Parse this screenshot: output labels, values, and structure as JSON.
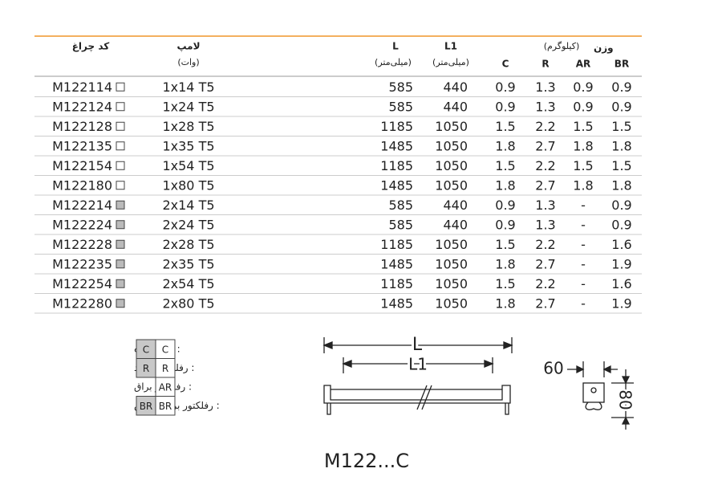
{
  "table": {
    "headers": {
      "code": "کد چراغ",
      "lamp": "لامپ",
      "lamp_unit": "(وات)",
      "L": "L",
      "L_unit": "(میلی‌متر)",
      "L1": "L1",
      "L1_unit": "(میلی‌متر)",
      "weight": "وزن",
      "weight_unit": "(کیلوگرم)",
      "C": "C",
      "R": "R",
      "AR": "AR",
      "BR": "BR"
    },
    "rows": [
      {
        "marker_color": "#ffffff",
        "cells": [
          "M122114",
          "1x14 T5",
          "585",
          "440",
          "0.9",
          "1.3",
          "0.9",
          "0.9"
        ]
      },
      {
        "marker_color": "#ffffff",
        "cells": [
          "M122124",
          "1x24 T5",
          "585",
          "440",
          "0.9",
          "1.3",
          "0.9",
          "0.9"
        ]
      },
      {
        "marker_color": "#ffffff",
        "cells": [
          "M122128",
          "1x28 T5",
          "1185",
          "1050",
          "1.5",
          "2.2",
          "1.5",
          "1.5"
        ]
      },
      {
        "marker_color": "#ffffff",
        "cells": [
          "M122135",
          "1x35 T5",
          "1485",
          "1050",
          "1.8",
          "2.7",
          "1.8",
          "1.8"
        ]
      },
      {
        "marker_color": "#ffffff",
        "cells": [
          "M122154",
          "1x54 T5",
          "1185",
          "1050",
          "1.5",
          "2.2",
          "1.5",
          "1.5"
        ]
      },
      {
        "marker_color": "#ffffff",
        "cells": [
          "M122180",
          "1x80 T5",
          "1485",
          "1050",
          "1.8",
          "2.7",
          "1.8",
          "1.8"
        ]
      },
      {
        "marker_color": "#bbbbbb",
        "cells": [
          "M122214",
          "2x14 T5",
          "585",
          "440",
          "0.9",
          "1.3",
          "-",
          "0.9"
        ]
      },
      {
        "marker_color": "#bbbbbb",
        "cells": [
          "M122224",
          "2x24 T5",
          "585",
          "440",
          "0.9",
          "1.3",
          "-",
          "0.9"
        ]
      },
      {
        "marker_color": "#bbbbbb",
        "cells": [
          "M122228",
          "2x28 T5",
          "1185",
          "1050",
          "1.5",
          "2.2",
          "-",
          "1.6"
        ]
      },
      {
        "marker_color": "#bbbbbb",
        "cells": [
          "M122235",
          "2x35 T5",
          "1485",
          "1050",
          "1.8",
          "2.7",
          "-",
          "1.9"
        ]
      },
      {
        "marker_color": "#bbbbbb",
        "cells": [
          "M122254",
          "2x54 T5",
          "1185",
          "1050",
          "1.5",
          "2.2",
          "-",
          "1.6"
        ]
      },
      {
        "marker_color": "#bbbbbb",
        "cells": [
          "M122280",
          "2x80 T5",
          "1485",
          "1050",
          "1.8",
          "2.7",
          "-",
          "1.9"
        ]
      }
    ]
  },
  "legend": [
    {
      "label": ": قاب ساده",
      "cells": [
        "C",
        "C"
      ]
    },
    {
      "label": ": رفلکتور سفید",
      "cells": [
        "R",
        "R"
      ]
    },
    {
      "label": ": رفلکتور براق",
      "cells": [
        "AR"
      ]
    },
    {
      "label": ": رفلکتور براق لوکس",
      "cells": [
        "BR",
        "BR"
      ]
    }
  ],
  "drawing": {
    "L": "L",
    "L1": "L1",
    "width": "60",
    "height": "80"
  },
  "footer": "M122...C"
}
